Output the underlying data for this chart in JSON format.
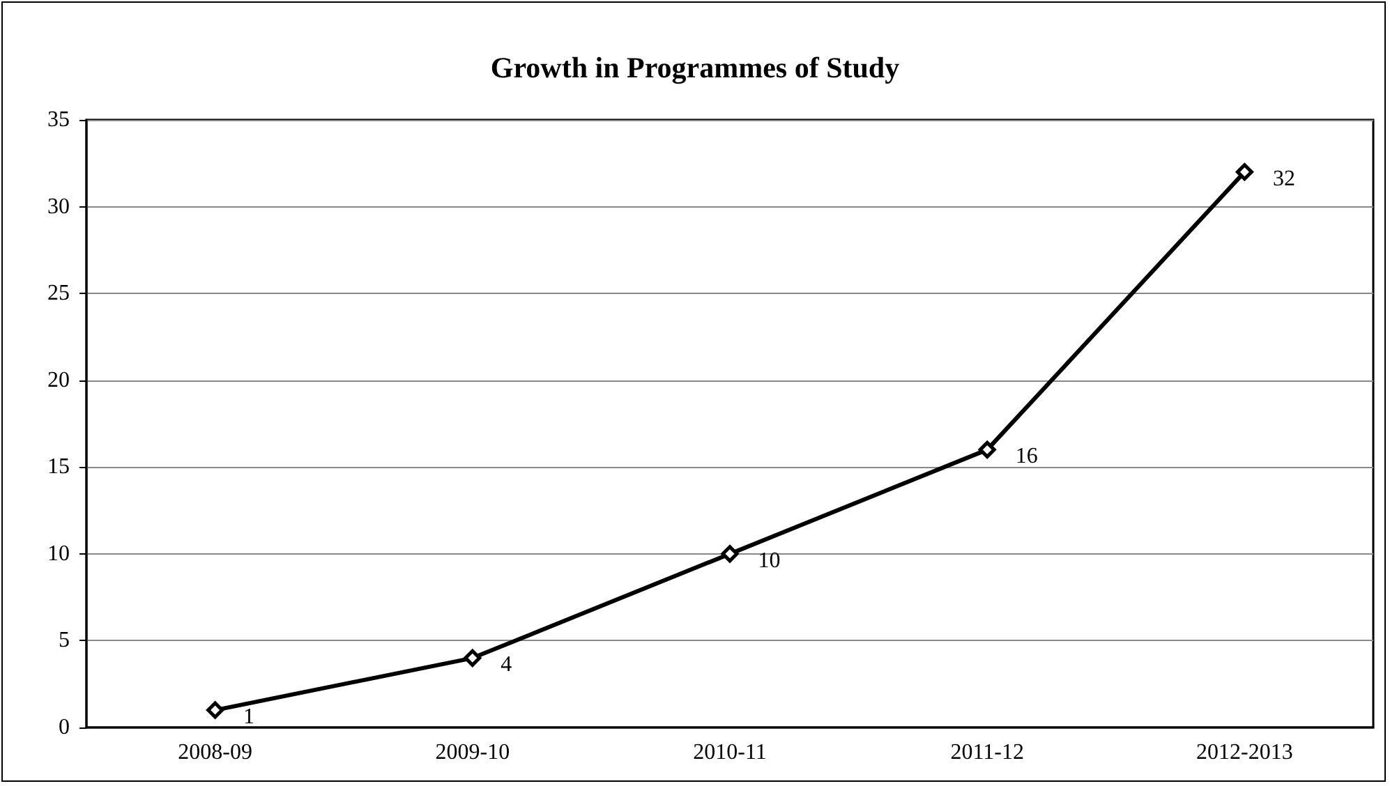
{
  "chart_data": {
    "type": "line",
    "title": "Growth in Programmes of Study",
    "categories": [
      "2008-09",
      "2009-10",
      "2010-11",
      "2011-12",
      "2012-2013"
    ],
    "series": [
      {
        "color": "#000000",
        "values": [
          1,
          4,
          10,
          16,
          32
        ]
      }
    ],
    "ylim": [
      0,
      35
    ],
    "yticks": [
      0,
      5,
      10,
      15,
      20,
      25,
      30,
      35
    ],
    "grid": "y",
    "marker": "diamond",
    "line_style": "solid",
    "data_labels": true
  }
}
